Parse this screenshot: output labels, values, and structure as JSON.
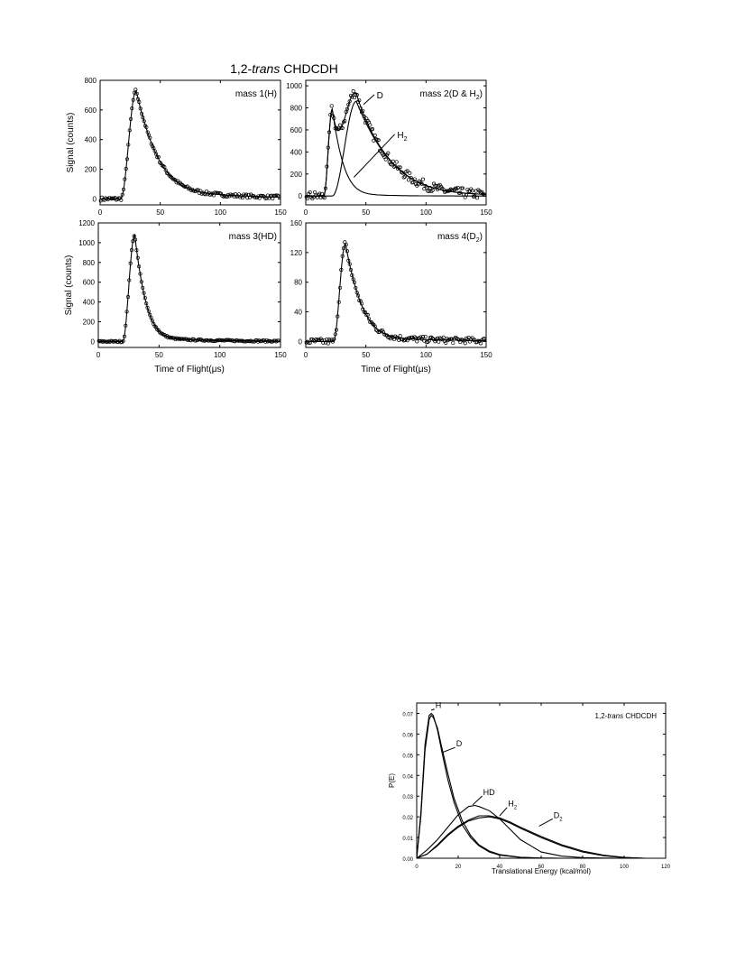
{
  "figure_title": {
    "prefix": "1,2-",
    "italic": "trans",
    "suffix": " CHDCDH"
  },
  "chart_data": [
    {
      "id": "tof-mass1",
      "type": "scatter",
      "title": "mass 1(H)",
      "xlabel": "",
      "ylabel": "Signal (counts)",
      "xlim": [
        0,
        150
      ],
      "ylim": [
        -40,
        800
      ],
      "xticks": [
        0,
        50,
        100,
        150
      ],
      "yticks": [
        0,
        200,
        400,
        600,
        800
      ],
      "fit": {
        "x0": 17,
        "peak_x": 30,
        "peak_y": 730,
        "rise": 0.38,
        "decay": 17,
        "tail_decay": 60,
        "tail_frac": 0.12,
        "noise": 12
      }
    },
    {
      "id": "tof-mass2",
      "type": "scatter",
      "title": "mass 2(D & H",
      "title_sub": "2",
      "title_end": ")",
      "xlabel": "",
      "ylabel": "",
      "xlim": [
        0,
        150
      ],
      "ylim": [
        -80,
        1050
      ],
      "xticks": [
        0,
        50,
        100,
        150
      ],
      "yticks": [
        0,
        200,
        400,
        600,
        800,
        1000
      ],
      "annotations": [
        {
          "label": "D",
          "sub": ""
        },
        {
          "label": "H",
          "sub": "2"
        }
      ],
      "components": [
        {
          "name": "H2",
          "x0": 15,
          "peak_x": 22,
          "peak_y": 790,
          "rise": 0.45,
          "decay": 9,
          "tail_decay": 25,
          "tail_frac": 0.05
        },
        {
          "name": "D",
          "x0": 22,
          "peak_x": 42,
          "peak_y": 860,
          "rise": 0.22,
          "decay": 28,
          "tail_decay": 80,
          "tail_frac": 0.05
        }
      ],
      "noise": 45
    },
    {
      "id": "tof-mass3",
      "type": "scatter",
      "title": "mass 3(HD)",
      "xlabel": "Time of Flight(μs)",
      "ylabel": "Signal (counts)",
      "xlim": [
        0,
        150
      ],
      "ylim": [
        -60,
        1200
      ],
      "xticks": [
        0,
        50,
        100,
        150
      ],
      "yticks": [
        0,
        200,
        400,
        600,
        800,
        1000,
        1200
      ],
      "fit": {
        "x0": 20,
        "peak_x": 30,
        "peak_y": 1080,
        "rise": 0.5,
        "decay": 9,
        "tail_decay": 50,
        "tail_frac": 0.04,
        "noise": 8
      }
    },
    {
      "id": "tof-mass4",
      "type": "scatter",
      "title": "mass 4(D",
      "title_sub": "2",
      "title_end": ")",
      "xlabel": "Time of Flight(μs)",
      "ylabel": "",
      "xlim": [
        0,
        150
      ],
      "ylim": [
        -8,
        160
      ],
      "xticks": [
        0,
        50,
        100,
        150
      ],
      "yticks": [
        0,
        40,
        80,
        120,
        160
      ],
      "fit": {
        "x0": 23,
        "peak_x": 33,
        "peak_y": 132,
        "rise": 0.45,
        "decay": 13,
        "tail_decay": 60,
        "tail_frac": 0.06,
        "noise": 4
      }
    },
    {
      "id": "pe-distributions",
      "type": "line",
      "title_prefix": "1,2-",
      "title_italic": "trans",
      "title_suffix": " CHDCDH",
      "xlabel": "Translational Energy (kcal/mol)",
      "ylabel": "P(E)",
      "xlim": [
        0,
        120
      ],
      "ylim": [
        0,
        0.075
      ],
      "xticks": [
        0,
        20,
        40,
        60,
        80,
        100,
        120
      ],
      "yticks": [
        0.0,
        0.01,
        0.02,
        0.03,
        0.04,
        0.05,
        0.06,
        0.07
      ],
      "ytick_labels": [
        "0.00",
        "0.01",
        "0.02",
        "0.03",
        "0.04",
        "0.05",
        "0.06",
        "0.07"
      ],
      "series": [
        {
          "name": "H",
          "sub": "",
          "x": [
            0,
            2,
            4,
            6,
            7,
            8,
            10,
            12,
            15,
            18,
            22,
            26,
            30,
            35,
            40,
            50,
            60,
            70
          ],
          "y": [
            0,
            0.022,
            0.055,
            0.069,
            0.07,
            0.069,
            0.062,
            0.052,
            0.038,
            0.027,
            0.016,
            0.01,
            0.006,
            0.003,
            0.0015,
            0.0004,
            0.0001,
            0
          ]
        },
        {
          "name": "D",
          "sub": "",
          "x": [
            0,
            2,
            4,
            6,
            7,
            8,
            10,
            12,
            15,
            18,
            22,
            26,
            30,
            35,
            40,
            50,
            60,
            70
          ],
          "y": [
            0,
            0.02,
            0.052,
            0.067,
            0.069,
            0.068,
            0.063,
            0.054,
            0.041,
            0.029,
            0.018,
            0.011,
            0.0065,
            0.0035,
            0.0018,
            0.0005,
            0.0001,
            0
          ]
        },
        {
          "name": "HD",
          "sub": "",
          "x": [
            0,
            5,
            10,
            15,
            20,
            25,
            28,
            30,
            35,
            40,
            45,
            50,
            55,
            60,
            70,
            80,
            90,
            100
          ],
          "y": [
            0,
            0.004,
            0.009,
            0.015,
            0.021,
            0.025,
            0.0255,
            0.025,
            0.023,
            0.019,
            0.014,
            0.009,
            0.006,
            0.003,
            0.001,
            0.0003,
            0.0001,
            0
          ]
        },
        {
          "name": "H",
          "sub": "2",
          "x": [
            0,
            5,
            10,
            15,
            20,
            25,
            30,
            35,
            40,
            45,
            50,
            60,
            70,
            80,
            90,
            100,
            110
          ],
          "y": [
            0,
            0.002,
            0.006,
            0.011,
            0.015,
            0.018,
            0.0195,
            0.02,
            0.019,
            0.017,
            0.0145,
            0.01,
            0.006,
            0.003,
            0.0012,
            0.0003,
            0
          ]
        },
        {
          "name": "D",
          "sub": "2",
          "x": [
            0,
            5,
            10,
            15,
            20,
            25,
            30,
            35,
            40,
            45,
            50,
            60,
            70,
            80,
            90,
            100,
            110
          ],
          "y": [
            0,
            0.002,
            0.0065,
            0.0115,
            0.0155,
            0.0185,
            0.0205,
            0.0205,
            0.0195,
            0.0175,
            0.015,
            0.0105,
            0.0065,
            0.0035,
            0.0015,
            0.0004,
            0
          ]
        }
      ]
    }
  ]
}
